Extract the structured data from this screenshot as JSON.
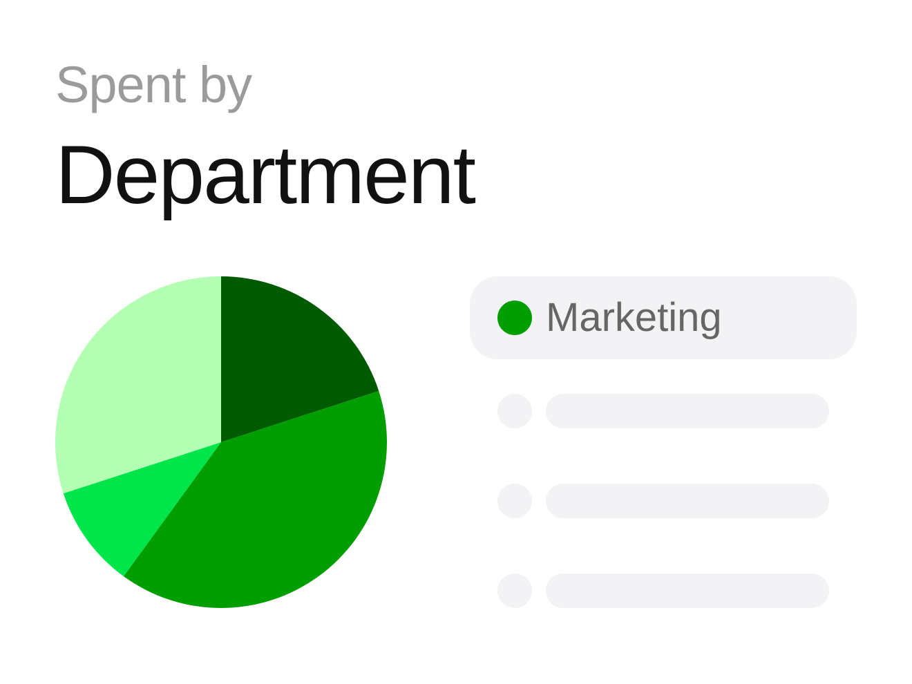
{
  "header": {
    "subtitle": "Spent by",
    "title": "Department"
  },
  "chart_data": {
    "type": "pie",
    "slices": [
      {
        "value": 20,
        "color": "#005a00"
      },
      {
        "value": 40,
        "color": "#009e00"
      },
      {
        "value": 10,
        "color": "#00e54a"
      },
      {
        "value": 30,
        "color": "#b3ffb3"
      }
    ]
  },
  "legend": {
    "selected": {
      "label": "Marketing",
      "color": "#009e00"
    },
    "placeholder_count": 3
  },
  "colors": {
    "placeholder": "#f3f3f5",
    "subtitle": "#9b9b9b",
    "title": "#111111",
    "label": "#666666"
  }
}
